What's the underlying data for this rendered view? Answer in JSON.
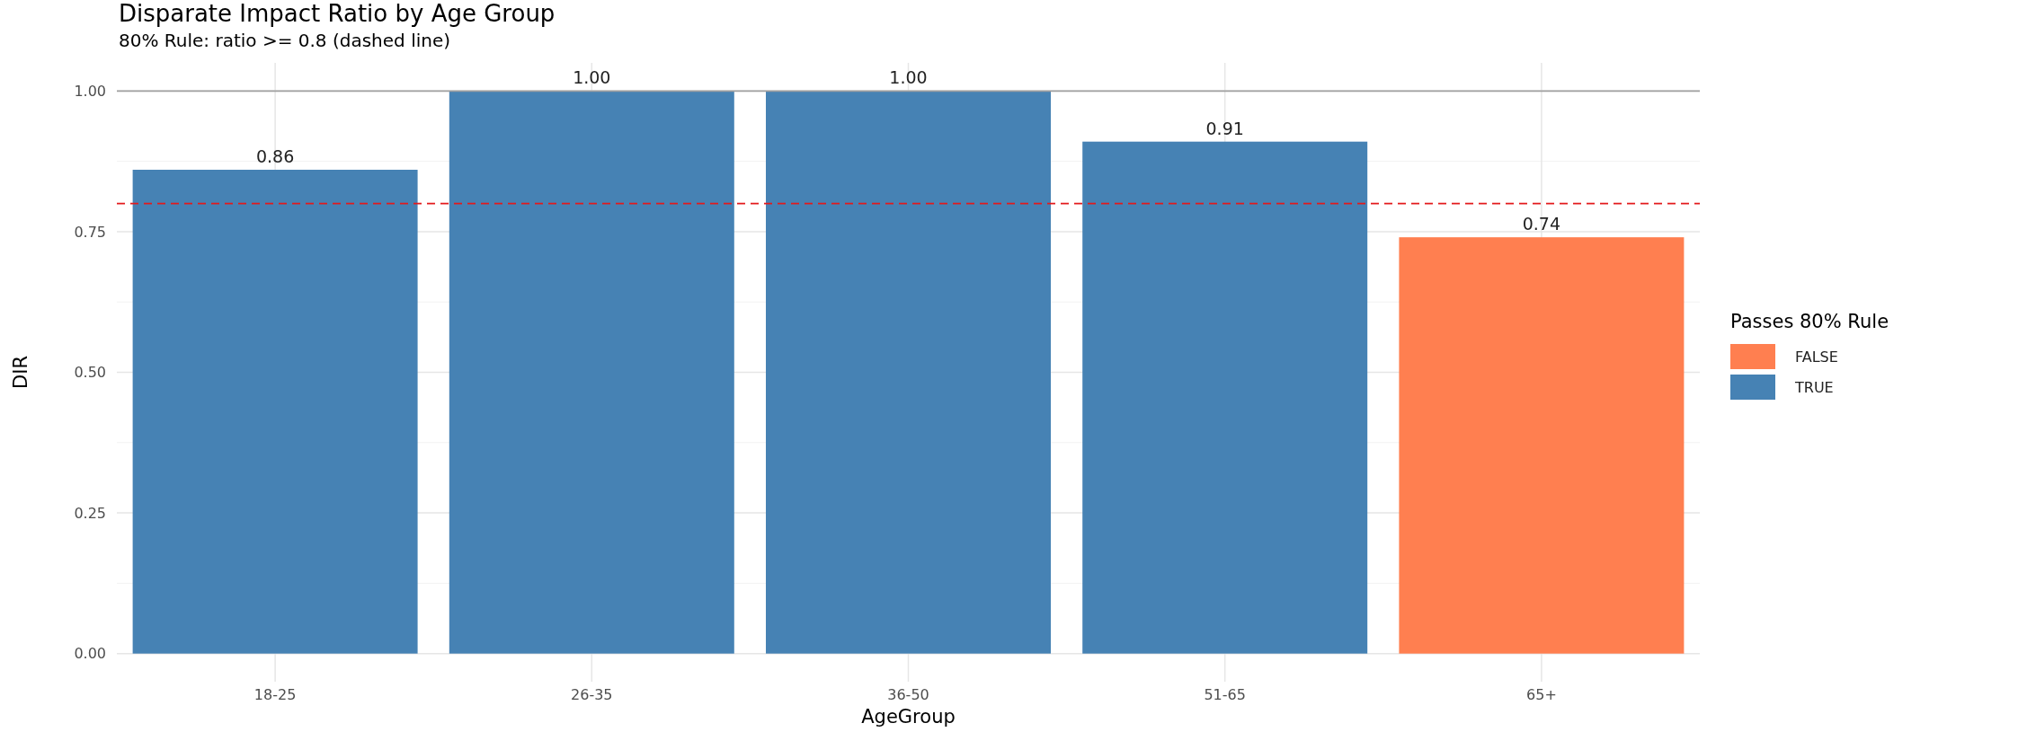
{
  "chart_data": {
    "type": "bar",
    "title": "Disparate Impact Ratio by Age Group",
    "subtitle": "80% Rule: ratio >= 0.8 (dashed line)",
    "xlabel": "AgeGroup",
    "ylabel": "DIR",
    "legend_title": "Passes 80% Rule",
    "categories": [
      "18-25",
      "26-35",
      "36-50",
      "51-65",
      "65+"
    ],
    "series": [
      {
        "name": "FALSE",
        "color": "#ff7f50",
        "values": [
          null,
          null,
          null,
          null,
          0.74
        ],
        "value_labels": [
          null,
          null,
          null,
          null,
          "0.74"
        ]
      },
      {
        "name": "TRUE",
        "color": "#4682b4",
        "values": [
          0.86,
          1.0,
          1.0,
          0.91,
          null
        ],
        "value_labels": [
          "0.86",
          "1.00",
          "1.00",
          "0.91",
          null
        ]
      }
    ],
    "stacked": true,
    "ylim": [
      -0.05,
      1.05
    ],
    "yticks": [
      {
        "value": 0,
        "label": "0.00"
      },
      {
        "value": 0.25,
        "label": "0.25"
      },
      {
        "value": 0.5,
        "label": "0.50"
      },
      {
        "value": 0.75,
        "label": "0.75"
      },
      {
        "value": 1,
        "label": "1.00"
      }
    ],
    "ref_lines": [
      {
        "axis": "y",
        "value": 0.8,
        "color": "#e31a1c",
        "line_style": "dashed"
      },
      {
        "axis": "y",
        "value": 1,
        "color": "#a0a0a0",
        "line_style": "solid"
      }
    ],
    "grid": true,
    "legend": "right"
  }
}
